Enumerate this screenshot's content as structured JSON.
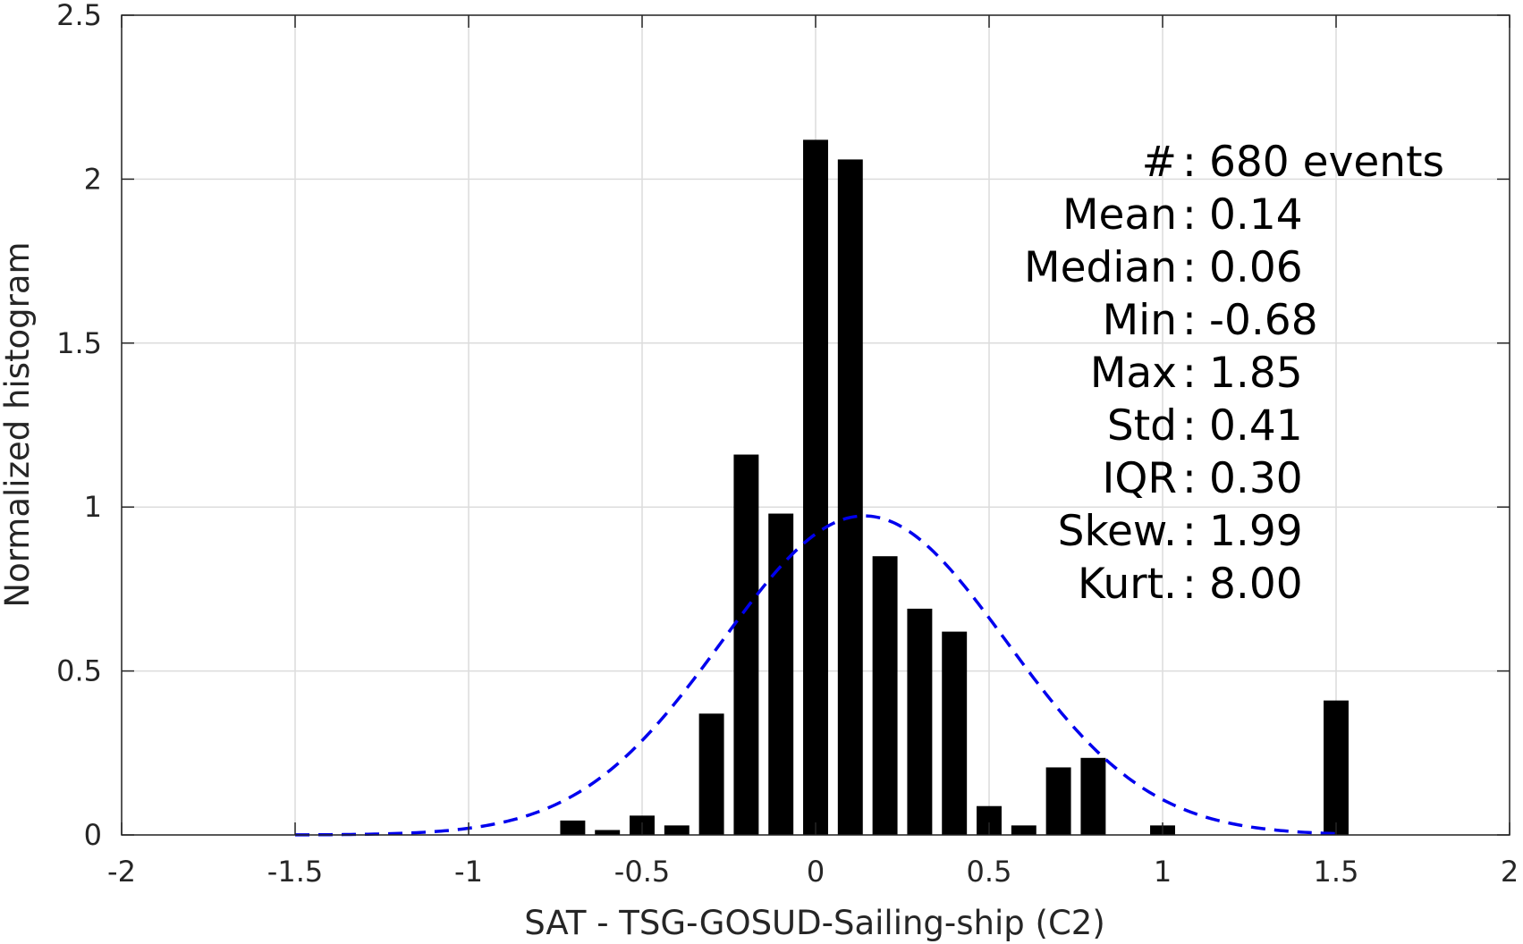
{
  "chart_data": {
    "type": "bar",
    "title": "",
    "xlabel": "SAT - TSG-GOSUD-Sailing-ship (C2)",
    "ylabel": "Normalized histogram",
    "xlim": [
      -2,
      2
    ],
    "ylim": [
      0,
      2.5
    ],
    "xticks": [
      "-2",
      "-1.5",
      "-1",
      "-0.5",
      "0",
      "0.5",
      "1",
      "1.5",
      "2"
    ],
    "yticks": [
      "0",
      "0.5",
      "1",
      "1.5",
      "2",
      "2.5"
    ],
    "grid": true,
    "bar_color": "#000000",
    "bin_width": 0.1,
    "series": [
      {
        "kind": "histogram",
        "x": [
          -0.7,
          -0.6,
          -0.5,
          -0.4,
          -0.3,
          -0.2,
          -0.1,
          0.0,
          0.1,
          0.2,
          0.3,
          0.4,
          0.5,
          0.6,
          0.7,
          0.8,
          0.9,
          1.0,
          1.1,
          1.2,
          1.3,
          1.4,
          1.5
        ],
        "values": [
          0.044,
          0.015,
          0.059,
          0.029,
          0.37,
          1.16,
          0.98,
          2.12,
          2.06,
          0.85,
          0.69,
          0.62,
          0.088,
          0.029,
          0.206,
          0.235,
          0,
          0.029,
          0,
          0,
          0,
          0,
          0.41
        ]
      },
      {
        "kind": "normal-fit",
        "line_style": "dashed",
        "color": "#0000ee",
        "mean": 0.14,
        "std": 0.41,
        "x_range": [
          -1.5,
          1.5
        ]
      }
    ],
    "stats": [
      {
        "label": "#  ",
        "value": "680 events"
      },
      {
        "label": "Mean ",
        "value": "0.14"
      },
      {
        "label": "Median ",
        "value": "0.06"
      },
      {
        "label": "Min ",
        "value": "-0.68"
      },
      {
        "label": "Max ",
        "value": "1.85"
      },
      {
        "label": "Std ",
        "value": "0.41"
      },
      {
        "label": "IQR ",
        "value": "0.30"
      },
      {
        "label": "Skew. ",
        "value": "1.99"
      },
      {
        "label": "Kurt. ",
        "value": "8.00"
      }
    ]
  }
}
